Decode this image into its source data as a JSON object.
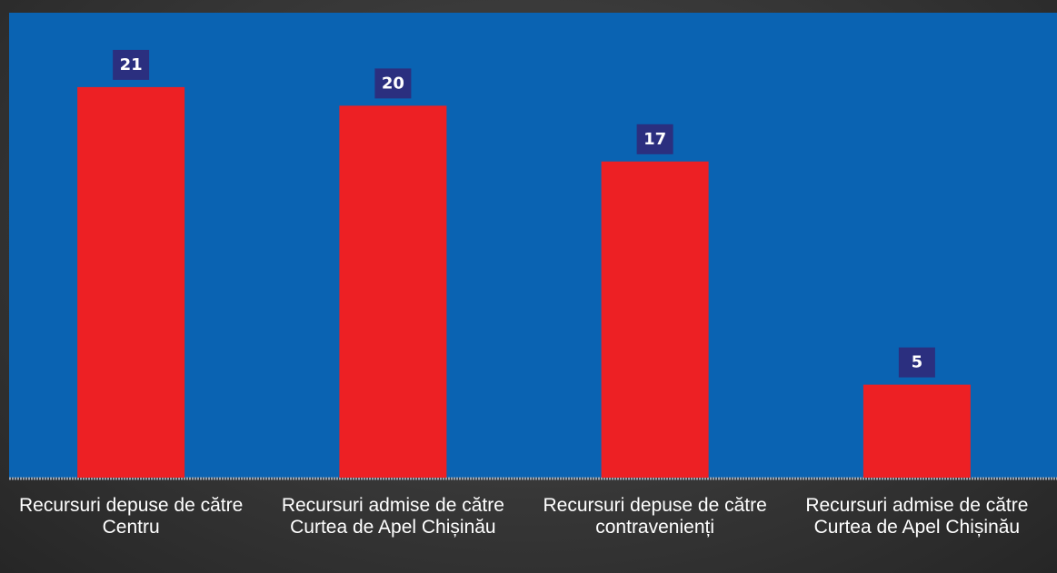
{
  "chart_data": {
    "type": "bar",
    "categories": [
      "Recursuri depuse de către Centru",
      "Recursuri admise de către Curtea de Apel Chișinău",
      "Recursuri depuse de către contravenienți",
      "Recursuri admise de către Curtea de Apel Chișinău"
    ],
    "values": [
      21,
      20,
      17,
      5
    ],
    "color": "#ed2024",
    "ylim": [
      0,
      25
    ]
  }
}
